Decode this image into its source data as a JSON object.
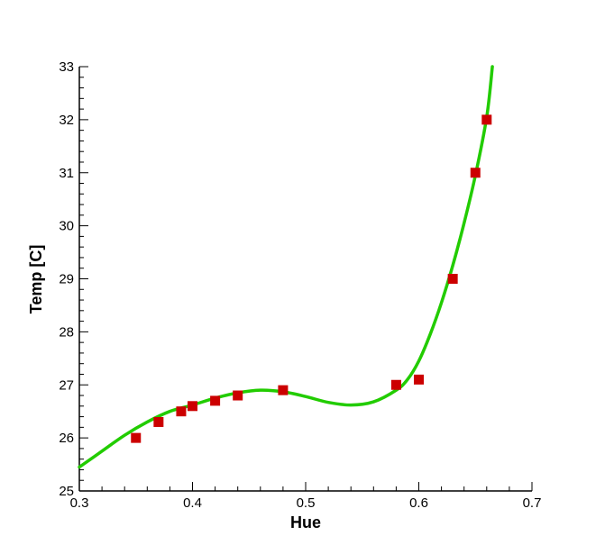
{
  "chart_data": {
    "type": "scatter",
    "xlabel": "Hue",
    "ylabel": "Temp [C]",
    "xlim": [
      0.3,
      0.7
    ],
    "ylim": [
      25,
      33
    ],
    "x_ticks": [
      "0.3",
      "0.4",
      "0.5",
      "0.6",
      "0.7"
    ],
    "y_ticks": [
      "25",
      "26",
      "27",
      "28",
      "29",
      "30",
      "31",
      "32",
      "33"
    ],
    "grid": false,
    "series": [
      {
        "kind": "points",
        "color": "#cc0000",
        "marker": "square",
        "x": [
          0.35,
          0.37,
          0.39,
          0.4,
          0.42,
          0.44,
          0.48,
          0.58,
          0.6,
          0.63,
          0.65,
          0.66
        ],
        "y": [
          26.0,
          26.3,
          26.5,
          26.6,
          26.7,
          26.8,
          26.9,
          27.0,
          27.1,
          29.0,
          31.0,
          32.0
        ]
      },
      {
        "kind": "fit-curve",
        "color": "#22cc00",
        "x": [
          0.3,
          0.32,
          0.34,
          0.36,
          0.38,
          0.4,
          0.42,
          0.44,
          0.46,
          0.48,
          0.5,
          0.52,
          0.54,
          0.56,
          0.58,
          0.59,
          0.6,
          0.61,
          0.62,
          0.63,
          0.64,
          0.65,
          0.66,
          0.665
        ],
        "y": [
          25.45,
          25.75,
          26.05,
          26.3,
          26.5,
          26.62,
          26.75,
          26.85,
          26.9,
          26.87,
          26.78,
          26.67,
          26.62,
          26.68,
          26.9,
          27.1,
          27.45,
          27.95,
          28.55,
          29.25,
          30.05,
          30.95,
          32.05,
          33.0
        ]
      }
    ]
  }
}
